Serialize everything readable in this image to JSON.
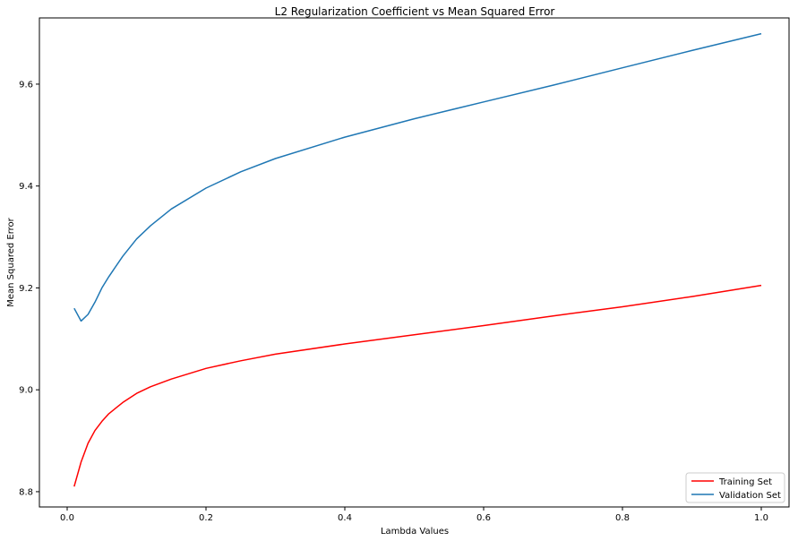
{
  "chart_data": {
    "type": "line",
    "title": "L2 Regularization Coefficient vs Mean Squared Error",
    "xlabel": "Lambda Values",
    "ylabel": "Mean Squared Error",
    "xlim": [
      -0.04,
      1.04
    ],
    "ylim": [
      8.77,
      9.73
    ],
    "x_ticks": [
      "0.0",
      "0.2",
      "0.4",
      "0.6",
      "0.8",
      "1.0"
    ],
    "y_ticks": [
      "8.8",
      "9.0",
      "9.2",
      "9.4",
      "9.6"
    ],
    "grid": false,
    "legend_position": "lower-right",
    "series": [
      {
        "name": "Training Set",
        "color": "#ff0000",
        "x": [
          0.01,
          0.02,
          0.03,
          0.04,
          0.05,
          0.06,
          0.08,
          0.1,
          0.12,
          0.15,
          0.2,
          0.25,
          0.3,
          0.4,
          0.5,
          0.6,
          0.7,
          0.8,
          0.9,
          1.0
        ],
        "y": [
          8.81,
          8.858,
          8.895,
          8.92,
          8.938,
          8.953,
          8.975,
          8.993,
          9.006,
          9.021,
          9.042,
          9.057,
          9.07,
          9.09,
          9.108,
          9.126,
          9.145,
          9.163,
          9.183,
          9.205
        ]
      },
      {
        "name": "Validation Set",
        "color": "#1f77b4",
        "x": [
          0.01,
          0.02,
          0.03,
          0.04,
          0.05,
          0.06,
          0.08,
          0.1,
          0.12,
          0.15,
          0.2,
          0.25,
          0.3,
          0.4,
          0.5,
          0.6,
          0.7,
          0.8,
          0.9,
          1.0
        ],
        "y": [
          9.16,
          9.135,
          9.148,
          9.172,
          9.2,
          9.222,
          9.262,
          9.296,
          9.322,
          9.355,
          9.396,
          9.428,
          9.454,
          9.496,
          9.532,
          9.565,
          9.598,
          9.632,
          9.666,
          9.699
        ]
      }
    ]
  }
}
